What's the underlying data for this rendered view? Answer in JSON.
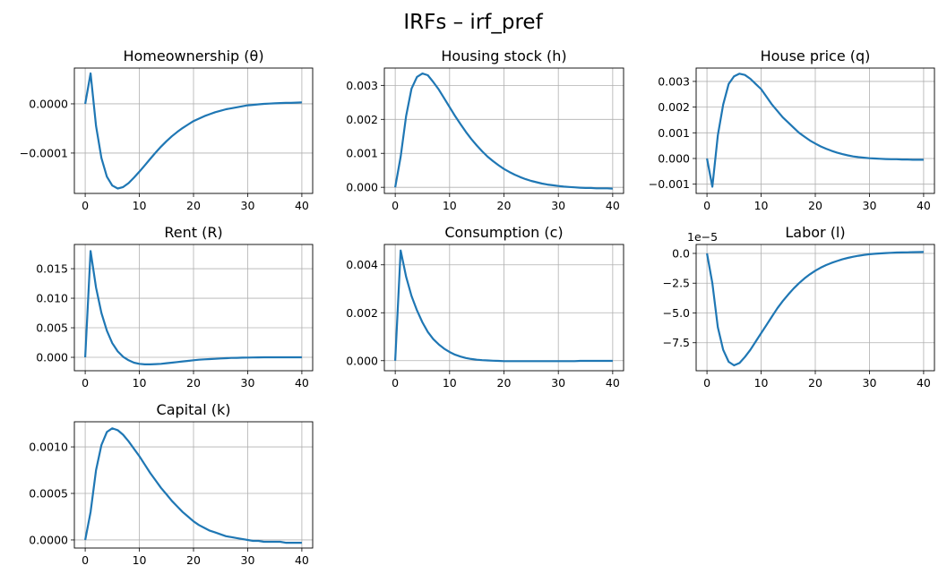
{
  "chart_data": {
    "title": "IRFs – irf_pref",
    "line_color": "#1f77b4",
    "grid": true,
    "subplots": [
      {
        "type": "line",
        "title": "Homeownership (θ)",
        "xlim": [
          -2,
          42
        ],
        "ylim": [
          -0.000182,
          7.27e-05
        ],
        "xticks": [
          0,
          10,
          20,
          30,
          40
        ],
        "xtick_labels": [
          "0",
          "10",
          "20",
          "30",
          "40"
        ],
        "yticks": [
          0,
          -0.0001
        ],
        "ytick_labels": [
          "0.0000",
          "−0.0001"
        ],
        "offset_text": "",
        "x": [
          0,
          1,
          2,
          3,
          4,
          5,
          6,
          7,
          8,
          9,
          10,
          11,
          12,
          13,
          14,
          15,
          16,
          17,
          18,
          19,
          20,
          21,
          22,
          23,
          24,
          25,
          26,
          27,
          28,
          29,
          30,
          31,
          32,
          33,
          34,
          35,
          36,
          37,
          38,
          39,
          40
        ],
        "y": [
          0,
          6.2e-05,
          -4.5e-05,
          -0.00011,
          -0.000148,
          -0.000166,
          -0.000172,
          -0.000169,
          -0.000161,
          -0.00015,
          -0.000138,
          -0.000125,
          -0.000112,
          -9.9e-05,
          -8.7e-05,
          -7.6e-05,
          -6.6e-05,
          -5.7e-05,
          -4.9e-05,
          -4.2e-05,
          -3.5e-05,
          -3e-05,
          -2.5e-05,
          -2.1e-05,
          -1.7e-05,
          -1.4e-05,
          -1.1e-05,
          -9e-06,
          -7e-06,
          -5e-06,
          -3e-06,
          -2e-06,
          -1e-06,
          0,
          5e-07,
          1e-06,
          1.5e-06,
          2e-06,
          2e-06,
          2.5e-06,
          3e-06
        ]
      },
      {
        "type": "line",
        "title": "Housing stock (h)",
        "xlim": [
          -2,
          42
        ],
        "ylim": [
          -0.00018,
          0.00351
        ],
        "xticks": [
          0,
          10,
          20,
          30,
          40
        ],
        "xtick_labels": [
          "0",
          "10",
          "20",
          "30",
          "40"
        ],
        "yticks": [
          0,
          0.001,
          0.002,
          0.003
        ],
        "ytick_labels": [
          "0.000",
          "0.001",
          "0.002",
          "0.003"
        ],
        "offset_text": "",
        "x": [
          0,
          1,
          2,
          3,
          4,
          5,
          6,
          7,
          8,
          9,
          10,
          11,
          12,
          13,
          14,
          15,
          16,
          17,
          18,
          19,
          20,
          21,
          22,
          23,
          24,
          25,
          26,
          27,
          28,
          29,
          30,
          31,
          32,
          33,
          34,
          35,
          36,
          37,
          38,
          39,
          40
        ],
        "y": [
          0,
          0.0009,
          0.0021,
          0.0029,
          0.00325,
          0.00335,
          0.0033,
          0.0031,
          0.00288,
          0.00262,
          0.00236,
          0.0021,
          0.00186,
          0.00163,
          0.00142,
          0.00123,
          0.00106,
          0.0009,
          0.00077,
          0.00065,
          0.00054,
          0.00045,
          0.00037,
          0.0003,
          0.00024,
          0.00019,
          0.00015,
          0.00011,
          8e-05,
          6e-05,
          4e-05,
          2e-05,
          1e-05,
          0,
          -1e-05,
          -2e-05,
          -2e-05,
          -3e-05,
          -3e-05,
          -3e-05,
          -4e-05
        ]
      },
      {
        "type": "line",
        "title": "House price (q)",
        "xlim": [
          -2,
          42
        ],
        "ylim": [
          -0.00136,
          0.00352
        ],
        "xticks": [
          0,
          10,
          20,
          30,
          40
        ],
        "xtick_labels": [
          "0",
          "10",
          "20",
          "30",
          "40"
        ],
        "yticks": [
          -0.001,
          0,
          0.001,
          0.002,
          0.003
        ],
        "ytick_labels": [
          "−0.001",
          "0.000",
          "0.001",
          "0.002",
          "0.003"
        ],
        "offset_text": "",
        "x": [
          0,
          1,
          2,
          3,
          4,
          5,
          6,
          7,
          8,
          9,
          10,
          11,
          12,
          13,
          14,
          15,
          16,
          17,
          18,
          19,
          20,
          21,
          22,
          23,
          24,
          25,
          26,
          27,
          28,
          29,
          30,
          31,
          32,
          33,
          34,
          35,
          36,
          37,
          38,
          39,
          40
        ],
        "y": [
          0,
          -0.0011,
          0.0009,
          0.0021,
          0.0029,
          0.0032,
          0.0033,
          0.00325,
          0.0031,
          0.0029,
          0.0027,
          0.0024,
          0.0021,
          0.00185,
          0.0016,
          0.0014,
          0.0012,
          0.001,
          0.00085,
          0.0007,
          0.00058,
          0.00047,
          0.00038,
          0.0003,
          0.00023,
          0.00017,
          0.00012,
          8e-05,
          5e-05,
          3e-05,
          1e-05,
          0,
          -1e-05,
          -2e-05,
          -3e-05,
          -3e-05,
          -4e-05,
          -4e-05,
          -5e-05,
          -5e-05,
          -5e-05
        ]
      },
      {
        "type": "line",
        "title": "Rent (R)",
        "xlim": [
          -2,
          42
        ],
        "ylim": [
          -0.00227,
          0.0191
        ],
        "xticks": [
          0,
          10,
          20,
          30,
          40
        ],
        "xtick_labels": [
          "0",
          "10",
          "20",
          "30",
          "40"
        ],
        "yticks": [
          0,
          0.005,
          0.01,
          0.015
        ],
        "ytick_labels": [
          "0.000",
          "0.005",
          "0.010",
          "0.015"
        ],
        "offset_text": "",
        "x": [
          0,
          1,
          2,
          3,
          4,
          5,
          6,
          7,
          8,
          9,
          10,
          11,
          12,
          13,
          14,
          15,
          16,
          17,
          18,
          19,
          20,
          21,
          22,
          23,
          24,
          25,
          26,
          27,
          28,
          29,
          30,
          31,
          32,
          33,
          34,
          35,
          36,
          37,
          38,
          39,
          40
        ],
        "y": [
          0,
          0.018,
          0.0118,
          0.0075,
          0.0045,
          0.0024,
          0.001,
          0.0001,
          -0.0005,
          -0.0009,
          -0.0011,
          -0.0012,
          -0.0012,
          -0.00115,
          -0.0011,
          -0.001,
          -0.0009,
          -0.0008,
          -0.0007,
          -0.0006,
          -0.0005,
          -0.0004,
          -0.00035,
          -0.0003,
          -0.00025,
          -0.0002,
          -0.00015,
          -0.0001,
          -8e-05,
          -6e-05,
          -4e-05,
          -2e-05,
          -1e-05,
          0,
          0,
          0,
          1e-05,
          1e-05,
          1e-05,
          1e-05,
          1e-05
        ]
      },
      {
        "type": "line",
        "title": "Consumption (c)",
        "xlim": [
          -2,
          42
        ],
        "ylim": [
          -0.00042,
          0.00485
        ],
        "xticks": [
          0,
          10,
          20,
          30,
          40
        ],
        "xtick_labels": [
          "0",
          "10",
          "20",
          "30",
          "40"
        ],
        "yticks": [
          0,
          0.002,
          0.004
        ],
        "ytick_labels": [
          "0.000",
          "0.002",
          "0.004"
        ],
        "offset_text": "",
        "x": [
          0,
          1,
          2,
          3,
          4,
          5,
          6,
          7,
          8,
          9,
          10,
          11,
          12,
          13,
          14,
          15,
          16,
          17,
          18,
          19,
          20,
          21,
          22,
          23,
          24,
          25,
          26,
          27,
          28,
          29,
          30,
          31,
          32,
          33,
          34,
          35,
          36,
          37,
          38,
          39,
          40
        ],
        "y": [
          0,
          0.0046,
          0.0035,
          0.0027,
          0.0021,
          0.0016,
          0.0012,
          0.0009,
          0.00068,
          0.0005,
          0.00036,
          0.00025,
          0.00017,
          0.00011,
          7e-05,
          4e-05,
          2e-05,
          1e-05,
          0,
          -1e-05,
          -2e-05,
          -2e-05,
          -2e-05,
          -2e-05,
          -2e-05,
          -2e-05,
          -2e-05,
          -2e-05,
          -2e-05,
          -2e-05,
          -2e-05,
          -2e-05,
          -2e-05,
          -2e-05,
          -1e-05,
          -1e-05,
          -1e-05,
          -1e-05,
          -1e-05,
          -1e-05,
          -1e-05
        ]
      },
      {
        "type": "line",
        "title": "Labor (l)",
        "xlim": [
          -2,
          42
        ],
        "ylim": [
          -9.85e-05,
          7.5e-06
        ],
        "xticks": [
          0,
          10,
          20,
          30,
          40
        ],
        "xtick_labels": [
          "0",
          "10",
          "20",
          "30",
          "40"
        ],
        "yticks": [
          0,
          -2.5e-05,
          -5e-05,
          -7.5e-05
        ],
        "ytick_labels": [
          "0.0",
          "−2.5",
          "−5.0",
          "−7.5"
        ],
        "offset_text": "1e−5",
        "x": [
          0,
          1,
          2,
          3,
          4,
          5,
          6,
          7,
          8,
          9,
          10,
          11,
          12,
          13,
          14,
          15,
          16,
          17,
          18,
          19,
          20,
          21,
          22,
          23,
          24,
          25,
          26,
          27,
          28,
          29,
          30,
          31,
          32,
          33,
          34,
          35,
          36,
          37,
          38,
          39,
          40
        ],
        "y": [
          0,
          -2.5e-05,
          -6.2e-05,
          -8.1e-05,
          -9.1e-05,
          -9.4e-05,
          -9.2e-05,
          -8.7e-05,
          -8.1e-05,
          -7.4e-05,
          -6.7e-05,
          -6e-05,
          -5.3e-05,
          -4.6e-05,
          -4e-05,
          -3.45e-05,
          -2.95e-05,
          -2.5e-05,
          -2.1e-05,
          -1.75e-05,
          -1.45e-05,
          -1.2e-05,
          -9.8e-06,
          -8e-06,
          -6.4e-06,
          -5e-06,
          -3.8e-06,
          -2.8e-06,
          -2e-06,
          -1.3e-06,
          -7e-07,
          -3e-07,
          0,
          3e-07,
          5e-07,
          7e-07,
          8e-07,
          9e-07,
          1e-06,
          1.1e-06,
          1.2e-06
        ]
      },
      {
        "type": "line",
        "title": "Capital (k)",
        "xlim": [
          -2,
          42
        ],
        "ylim": [
          -8.7e-05,
          0.00127
        ],
        "xticks": [
          0,
          10,
          20,
          30,
          40
        ],
        "xtick_labels": [
          "0",
          "10",
          "20",
          "30",
          "40"
        ],
        "yticks": [
          0,
          0.0005,
          0.001
        ],
        "ytick_labels": [
          "0.0000",
          "0.0005",
          "0.0010"
        ],
        "offset_text": "",
        "x": [
          0,
          1,
          2,
          3,
          4,
          5,
          6,
          7,
          8,
          9,
          10,
          11,
          12,
          13,
          14,
          15,
          16,
          17,
          18,
          19,
          20,
          21,
          22,
          23,
          24,
          25,
          26,
          27,
          28,
          29,
          30,
          31,
          32,
          33,
          34,
          35,
          36,
          37,
          38,
          39,
          40
        ],
        "y": [
          0,
          0.0003,
          0.00075,
          0.00102,
          0.00116,
          0.0012,
          0.00118,
          0.00113,
          0.00106,
          0.00098,
          0.0009,
          0.00081,
          0.00072,
          0.00064,
          0.00056,
          0.00049,
          0.00042,
          0.00036,
          0.0003,
          0.00025,
          0.0002,
          0.00016,
          0.00013,
          0.0001,
          8e-05,
          6e-05,
          4e-05,
          3e-05,
          2e-05,
          1e-05,
          0,
          -1e-05,
          -1e-05,
          -2e-05,
          -2e-05,
          -2e-05,
          -2e-05,
          -3e-05,
          -3e-05,
          -3e-05,
          -3e-05
        ]
      }
    ]
  }
}
